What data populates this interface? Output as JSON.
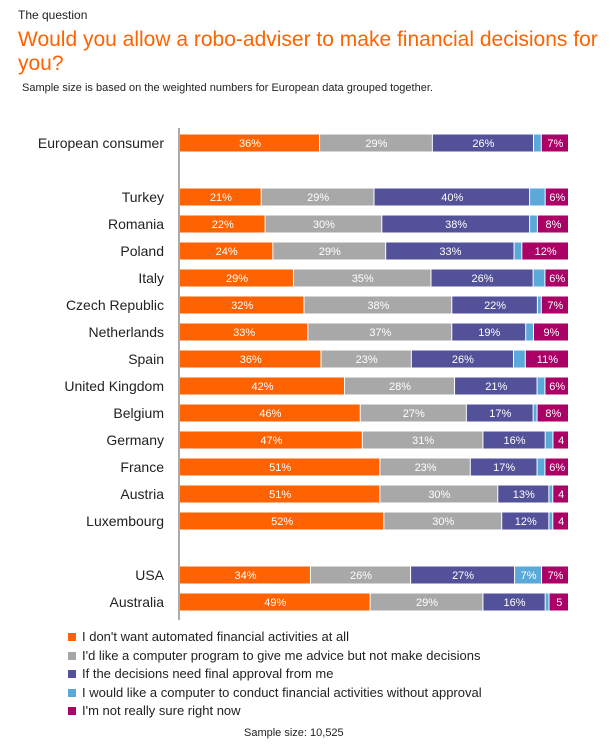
{
  "kicker": "The question",
  "title": "Would you allow a robo-adviser to make financial decisions for you?",
  "subtitle": "Sample size is based on the weighted numbers for European data grouped together.",
  "footer": "Sample size: 10,525",
  "colors": [
    "#ff6200",
    "#a8a8a8",
    "#525199",
    "#5aa9d8",
    "#ab0066"
  ],
  "chart_data": {
    "type": "bar",
    "orientation": "horizontal",
    "stacked": true,
    "normalized": true,
    "categories": [
      "European consumer",
      "Turkey",
      "Romania",
      "Poland",
      "Italy",
      "Czech Republic",
      "Netherlands",
      "Spain",
      "United Kingdom",
      "Belgium",
      "Germany",
      "France",
      "Austria",
      "Luxembourg",
      "USA",
      "Australia"
    ],
    "groups": [
      [
        0
      ],
      [
        1,
        2,
        3,
        4,
        5,
        6,
        7,
        8,
        9,
        10,
        11,
        12,
        13
      ],
      [
        14,
        15
      ]
    ],
    "series": [
      {
        "name": "I don't want automated financial activities at all",
        "values": [
          36,
          21,
          22,
          24,
          29,
          32,
          33,
          36,
          42,
          46,
          47,
          51,
          51,
          52,
          34,
          49
        ],
        "labels": [
          "36%",
          "21%",
          "22%",
          "24%",
          "29%",
          "32%",
          "33%",
          "36%",
          "42%",
          "46%",
          "47%",
          "51%",
          "51%",
          "52%",
          "34%",
          "49%"
        ]
      },
      {
        "name": "I'd like a computer program to give me advice but not make decisions",
        "values": [
          29,
          29,
          30,
          29,
          35,
          38,
          37,
          23,
          28,
          27,
          31,
          23,
          30,
          30,
          26,
          29
        ],
        "labels": [
          "29%",
          "29%",
          "30%",
          "29%",
          "35%",
          "38%",
          "37%",
          "23%",
          "28%",
          "27%",
          "31%",
          "23%",
          "30%",
          "30%",
          "26%",
          "29%"
        ]
      },
      {
        "name": "If the decisions need final approval from me",
        "values": [
          26,
          40,
          38,
          33,
          26,
          22,
          19,
          26,
          21,
          17,
          16,
          17,
          13,
          12,
          27,
          16
        ],
        "labels": [
          "26%",
          "40%",
          "38%",
          "33%",
          "26%",
          "22%",
          "19%",
          "26%",
          "21%",
          "17%",
          "16%",
          "17%",
          "13%",
          "12%",
          "27%",
          "16%"
        ]
      },
      {
        "name": "I would like a computer to conduct financial activities without approval",
        "values": [
          2,
          4,
          2,
          2,
          3,
          1,
          2,
          3,
          2,
          1,
          2,
          2,
          1,
          1,
          7,
          1
        ],
        "labels": [
          "",
          "",
          "",
          "",
          "",
          "",
          "",
          "",
          "",
          "",
          "",
          "",
          "",
          "",
          "7%",
          ""
        ]
      },
      {
        "name": "I'm not really sure right now",
        "values": [
          7,
          6,
          8,
          12,
          6,
          7,
          9,
          11,
          6,
          8,
          4,
          6,
          4,
          4,
          7,
          5
        ],
        "labels": [
          "7%",
          "6%",
          "8%",
          "12%",
          "6%",
          "7%",
          "9%",
          "11%",
          "6%",
          "8%",
          "4",
          "6%",
          "4",
          "4",
          "7%",
          "5"
        ]
      }
    ]
  }
}
